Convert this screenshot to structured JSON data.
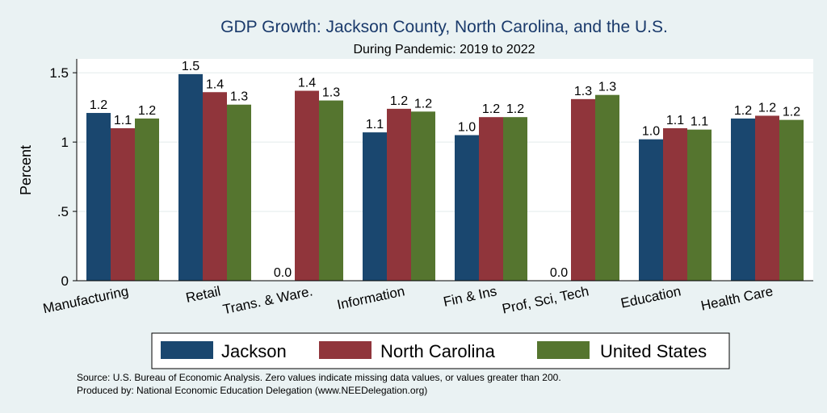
{
  "chart_data": {
    "type": "bar",
    "title": "GDP Growth: Jackson County, North Carolina, and the U.S.",
    "subtitle": "During Pandemic: 2019 to 2022",
    "ylabel": "Percent",
    "xlabel": "",
    "ylim": [
      0,
      1.6
    ],
    "yticks": [
      0,
      0.5,
      1,
      1.5
    ],
    "ytick_labels": [
      "0",
      ".5",
      "1",
      "1.5"
    ],
    "grid": true,
    "categories": [
      "Manufacturing",
      "Retail",
      "Trans. & Ware.",
      "Information",
      "Fin & Ins",
      "Prof, Sci, Tech",
      "Education",
      "Health Care"
    ],
    "series": [
      {
        "name": "Jackson",
        "color": "#1a476f",
        "values": [
          1.21,
          1.49,
          0.0,
          1.07,
          1.05,
          0.0,
          1.02,
          1.17
        ],
        "labels": [
          "1.2",
          "1.5",
          "0.0",
          "1.1",
          "1.0",
          "0.0",
          "1.0",
          "1.2"
        ]
      },
      {
        "name": "North Carolina",
        "color": "#90353b",
        "values": [
          1.1,
          1.36,
          1.37,
          1.24,
          1.18,
          1.31,
          1.1,
          1.19
        ],
        "labels": [
          "1.1",
          "1.4",
          "1.4",
          "1.2",
          "1.2",
          "1.3",
          "1.1",
          "1.2"
        ]
      },
      {
        "name": "United States",
        "color": "#55752f",
        "values": [
          1.17,
          1.27,
          1.3,
          1.22,
          1.18,
          1.34,
          1.09,
          1.16
        ],
        "labels": [
          "1.2",
          "1.3",
          "1.3",
          "1.2",
          "1.2",
          "1.3",
          "1.1",
          "1.2"
        ]
      }
    ],
    "legend_position": "bottom",
    "source_note": "Source: U.S. Bureau of Economic Analysis. Zero values indicate missing data values, or values greater than 200.",
    "produced_note": "Produced by: National Economic Education Delegation (www.NEEDelegation.org)"
  }
}
